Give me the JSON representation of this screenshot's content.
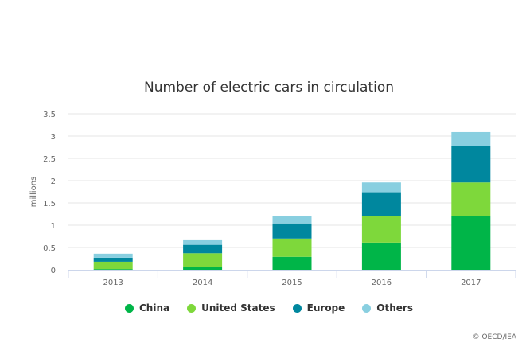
{
  "chart_data": {
    "type": "bar",
    "stacked": true,
    "title": "Number of electric cars in circulation",
    "xlabel": "",
    "ylabel": "millions",
    "ylim": [
      0,
      3.5
    ],
    "yticks": [
      "0",
      "0.5",
      "1",
      "1.5",
      "2",
      "2.5",
      "3",
      "3.5"
    ],
    "grid": true,
    "legend_position": "bottom",
    "categories": [
      "2013",
      "2014",
      "2015",
      "2016",
      "2017"
    ],
    "series": [
      {
        "name": "China",
        "color": "#00b548",
        "values": [
          0.015,
          0.07,
          0.29,
          0.61,
          1.2
        ]
      },
      {
        "name": "United States",
        "color": "#7ed83b",
        "values": [
          0.165,
          0.3,
          0.41,
          0.59,
          0.76
        ]
      },
      {
        "name": "Europe",
        "color": "#00879e",
        "values": [
          0.09,
          0.19,
          0.34,
          0.54,
          0.82
        ]
      },
      {
        "name": "Others",
        "color": "#89cfe0",
        "values": [
          0.09,
          0.12,
          0.17,
          0.22,
          0.31
        ]
      }
    ]
  },
  "credit": "© OECD/IEA"
}
